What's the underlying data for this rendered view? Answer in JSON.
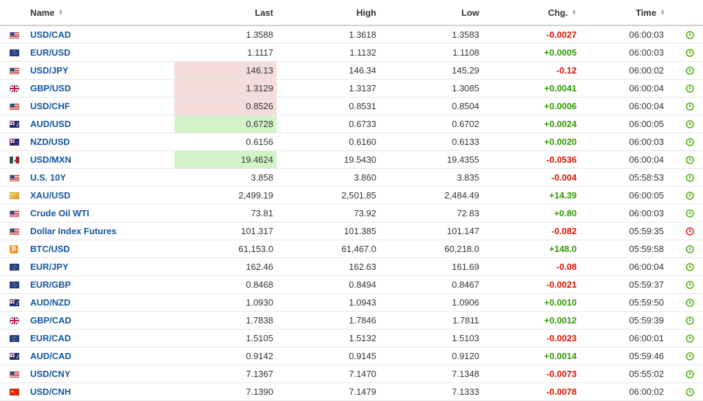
{
  "columns": {
    "name": "Name",
    "last": "Last",
    "high": "High",
    "low": "Low",
    "chg": "Chg.",
    "time": "Time"
  },
  "colors": {
    "positive": "#2e9a00",
    "negative": "#d91400",
    "link": "#1256a0",
    "highlight_down": "#f5dcdc",
    "highlight_up": "#d3f4c8"
  },
  "rows": [
    {
      "flag": "us-flag-icon",
      "name": "USD/CAD",
      "last": "1.3588",
      "high": "1.3618",
      "low": "1.3583",
      "chg": "-0.0027",
      "dir": "neg",
      "time": "06:00:03",
      "status": "live-clock-icon",
      "highlight": ""
    },
    {
      "flag": "eu-flag-icon",
      "name": "EUR/USD",
      "last": "1.1117",
      "high": "1.1132",
      "low": "1.1108",
      "chg": "+0.0005",
      "dir": "pos",
      "time": "06:00:03",
      "status": "live-clock-icon",
      "highlight": ""
    },
    {
      "flag": "us-flag-icon",
      "name": "USD/JPY",
      "last": "146.13",
      "high": "146.34",
      "low": "145.29",
      "chg": "-0.12",
      "dir": "neg",
      "time": "06:00:02",
      "status": "live-clock-icon",
      "highlight": "down"
    },
    {
      "flag": "gb-flag-icon",
      "name": "GBP/USD",
      "last": "1.3129",
      "high": "1.3137",
      "low": "1.3085",
      "chg": "+0.0041",
      "dir": "pos",
      "time": "06:00:04",
      "status": "live-clock-icon",
      "highlight": "down"
    },
    {
      "flag": "us-flag-icon",
      "name": "USD/CHF",
      "last": "0.8526",
      "high": "0.8531",
      "low": "0.8504",
      "chg": "+0.0006",
      "dir": "pos",
      "time": "06:00:04",
      "status": "live-clock-icon",
      "highlight": "down"
    },
    {
      "flag": "au-flag-icon",
      "name": "AUD/USD",
      "last": "0.6728",
      "high": "0.6733",
      "low": "0.6702",
      "chg": "+0.0024",
      "dir": "pos",
      "time": "06:00:05",
      "status": "live-clock-icon",
      "highlight": "up"
    },
    {
      "flag": "nz-flag-icon",
      "name": "NZD/USD",
      "last": "0.6156",
      "high": "0.6160",
      "low": "0.6133",
      "chg": "+0.0020",
      "dir": "pos",
      "time": "06:00:03",
      "status": "live-clock-icon",
      "highlight": ""
    },
    {
      "flag": "mx-flag-icon",
      "name": "USD/MXN",
      "last": "19.4624",
      "high": "19.5430",
      "low": "19.4355",
      "chg": "-0.0536",
      "dir": "neg",
      "time": "06:00:04",
      "status": "live-clock-icon",
      "highlight": "up"
    },
    {
      "flag": "us-flag-icon",
      "name": "U.S. 10Y",
      "last": "3.858",
      "high": "3.860",
      "low": "3.835",
      "chg": "-0.004",
      "dir": "neg",
      "time": "05:58:53",
      "status": "live-clock-icon",
      "highlight": ""
    },
    {
      "flag": "gold-icon",
      "name": "XAU/USD",
      "last": "2,499.19",
      "high": "2,501.85",
      "low": "2,484.49",
      "chg": "+14.39",
      "dir": "pos",
      "time": "06:00:05",
      "status": "live-clock-icon",
      "highlight": ""
    },
    {
      "flag": "us-flag-icon",
      "name": "Crude Oil WTI",
      "last": "73.81",
      "high": "73.92",
      "low": "72.83",
      "chg": "+0.80",
      "dir": "pos",
      "time": "06:00:03",
      "status": "live-clock-icon",
      "highlight": ""
    },
    {
      "flag": "us-flag-icon",
      "name": "Dollar Index Futures",
      "last": "101.317",
      "high": "101.385",
      "low": "101.147",
      "chg": "-0.082",
      "dir": "neg",
      "time": "05:59:35",
      "status": "closed-clock-icon",
      "highlight": ""
    },
    {
      "flag": "bitcoin-icon",
      "name": "BTC/USD",
      "last": "61,153.0",
      "high": "61,467.0",
      "low": "60,218.0",
      "chg": "+148.0",
      "dir": "pos",
      "time": "05:59:58",
      "status": "live-clock-icon",
      "highlight": ""
    },
    {
      "flag": "eu-flag-icon",
      "name": "EUR/JPY",
      "last": "162.46",
      "high": "162.63",
      "low": "161.69",
      "chg": "-0.08",
      "dir": "neg",
      "time": "06:00:04",
      "status": "live-clock-icon",
      "highlight": ""
    },
    {
      "flag": "eu-flag-icon",
      "name": "EUR/GBP",
      "last": "0.8468",
      "high": "0.8494",
      "low": "0.8467",
      "chg": "-0.0021",
      "dir": "neg",
      "time": "05:59:37",
      "status": "live-clock-icon",
      "highlight": ""
    },
    {
      "flag": "au-flag-icon",
      "name": "AUD/NZD",
      "last": "1.0930",
      "high": "1.0943",
      "low": "1.0906",
      "chg": "+0.0010",
      "dir": "pos",
      "time": "05:59:50",
      "status": "live-clock-icon",
      "highlight": ""
    },
    {
      "flag": "gb-flag-icon",
      "name": "GBP/CAD",
      "last": "1.7838",
      "high": "1.7846",
      "low": "1.7811",
      "chg": "+0.0012",
      "dir": "pos",
      "time": "05:59:39",
      "status": "live-clock-icon",
      "highlight": ""
    },
    {
      "flag": "eu-flag-icon",
      "name": "EUR/CAD",
      "last": "1.5105",
      "high": "1.5132",
      "low": "1.5103",
      "chg": "-0.0023",
      "dir": "neg",
      "time": "06:00:01",
      "status": "live-clock-icon",
      "highlight": ""
    },
    {
      "flag": "au-flag-icon",
      "name": "AUD/CAD",
      "last": "0.9142",
      "high": "0.9145",
      "low": "0.9120",
      "chg": "+0.0014",
      "dir": "pos",
      "time": "05:59:46",
      "status": "live-clock-icon",
      "highlight": ""
    },
    {
      "flag": "us-flag-icon",
      "name": "USD/CNY",
      "last": "7.1367",
      "high": "7.1470",
      "low": "7.1348",
      "chg": "-0.0073",
      "dir": "neg",
      "time": "05:55:02",
      "status": "live-clock-icon",
      "highlight": ""
    },
    {
      "flag": "cn-flag-icon",
      "name": "USD/CNH",
      "last": "7.1390",
      "high": "7.1479",
      "low": "7.1333",
      "chg": "-0.0078",
      "dir": "neg",
      "time": "06:00:02",
      "status": "live-clock-icon",
      "highlight": ""
    }
  ]
}
